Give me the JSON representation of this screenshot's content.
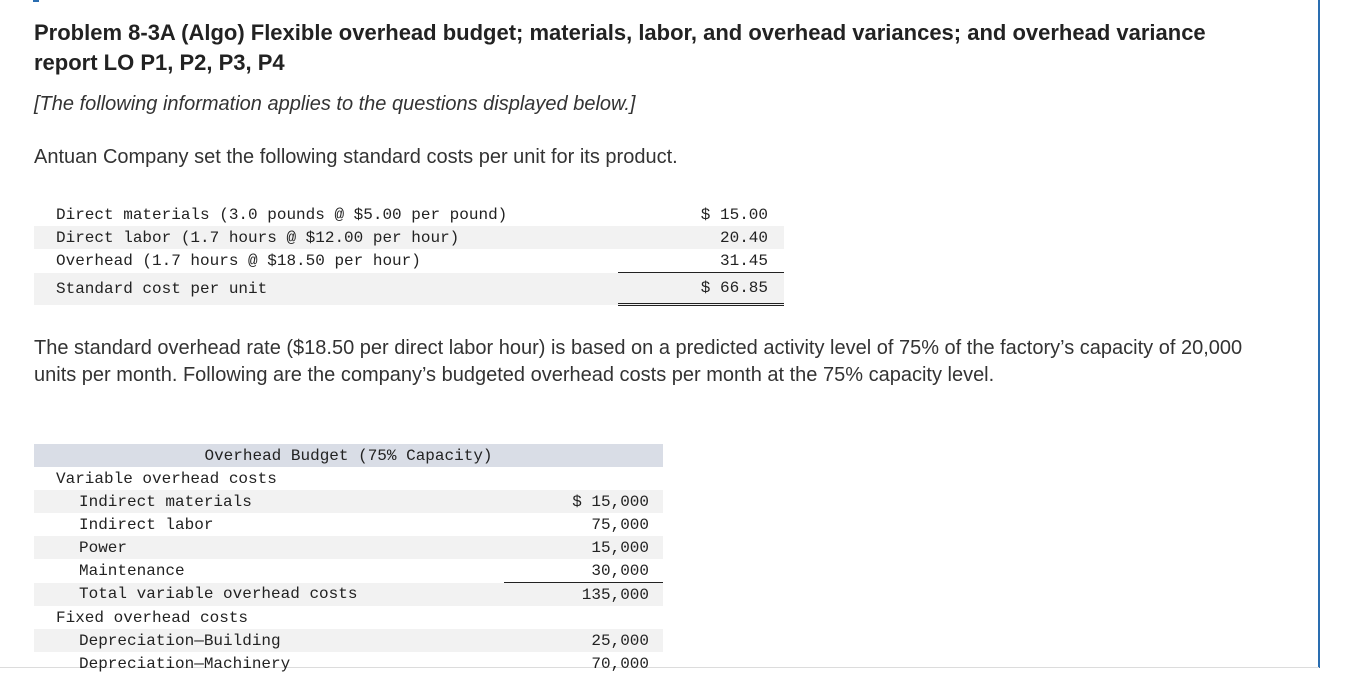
{
  "problem": {
    "title": "Problem 8-3A (Algo) Flexible overhead budget; materials, labor, and overhead variances; and overhead variance report LO P1, P2, P3, P4",
    "intro": "[The following information applies to the questions displayed below.]",
    "para1": "Antuan Company set the following standard costs per unit for its product.",
    "para2": "The standard overhead rate ($18.50 per direct labor hour) is based on a predicted activity level of 75% of the factory’s capacity of 20,000 units per month. Following are the company’s budgeted overhead costs per month at the 75% capacity level."
  },
  "standard_costs": {
    "rows": [
      {
        "label": "Direct materials (3.0 pounds @ $5.00 per pound)",
        "amount": "$ 15.00"
      },
      {
        "label": "Direct labor (1.7 hours @ $12.00 per hour)",
        "amount": "20.40"
      },
      {
        "label": "Overhead (1.7 hours @ $18.50 per hour)",
        "amount": "31.45"
      }
    ],
    "total": {
      "label": "Standard cost per unit",
      "amount": "$ 66.85"
    }
  },
  "overhead_budget": {
    "header": "Overhead Budget (75% Capacity)",
    "variable_heading": "Variable overhead costs",
    "variable_rows": [
      {
        "label": "Indirect materials",
        "amount": "$ 15,000"
      },
      {
        "label": "Indirect labor",
        "amount": "75,000"
      },
      {
        "label": "Power",
        "amount": "15,000"
      },
      {
        "label": "Maintenance",
        "amount": "30,000"
      }
    ],
    "variable_total": {
      "label": "Total variable overhead costs",
      "amount": "135,000"
    },
    "fixed_heading": "Fixed overhead costs",
    "fixed_rows": [
      {
        "label": "Depreciation—Building",
        "amount": "25,000"
      },
      {
        "label": "Depreciation—Machinery",
        "amount": "70,000"
      }
    ]
  },
  "colors": {
    "accent": "#2a6db0",
    "table_header": "#d9dde6",
    "row_shade": "#f2f2f2"
  }
}
